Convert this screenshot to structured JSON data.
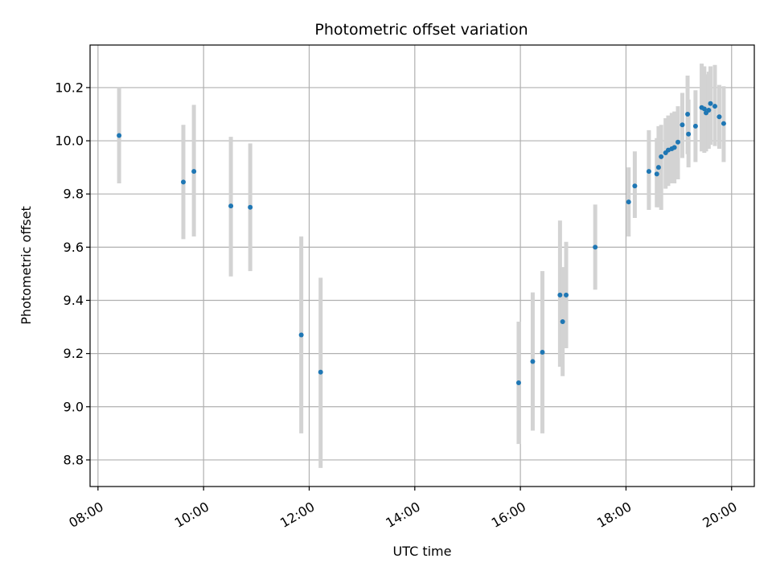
{
  "chart_data": {
    "type": "scatter",
    "title": "Photometric offset variation",
    "xlabel": "UTC time",
    "ylabel": "Photometric offset",
    "x_tick_labels": [
      "08:00",
      "10:00",
      "12:00",
      "14:00",
      "16:00",
      "18:00",
      "20:00"
    ],
    "y_tick_labels": [
      "8.8",
      "9.0",
      "9.2",
      "9.4",
      "9.6",
      "9.8",
      "10.0",
      "10.2"
    ],
    "x_ticks_hours": [
      8,
      10,
      12,
      14,
      16,
      18,
      20
    ],
    "y_ticks": [
      8.8,
      9.0,
      9.2,
      9.4,
      9.6,
      9.8,
      10.0,
      10.2
    ],
    "xlim_hours": [
      7.85,
      20.43
    ],
    "ylim": [
      8.7,
      10.36
    ],
    "grid": true,
    "point_color": "#1f77b4",
    "errorbar_color": "#d3d3d3",
    "points": [
      {
        "t": "08:24",
        "y": 10.02,
        "lo": 9.84,
        "hi": 10.2
      },
      {
        "t": "09:37",
        "y": 9.845,
        "lo": 9.63,
        "hi": 10.06
      },
      {
        "t": "09:49",
        "y": 9.885,
        "lo": 9.64,
        "hi": 10.135
      },
      {
        "t": "10:31",
        "y": 9.755,
        "lo": 9.49,
        "hi": 10.015
      },
      {
        "t": "10:53",
        "y": 9.75,
        "lo": 9.51,
        "hi": 9.99
      },
      {
        "t": "11:51",
        "y": 9.27,
        "lo": 8.9,
        "hi": 9.64
      },
      {
        "t": "12:13",
        "y": 9.13,
        "lo": 8.77,
        "hi": 9.485
      },
      {
        "t": "15:58",
        "y": 9.09,
        "lo": 8.86,
        "hi": 9.32
      },
      {
        "t": "16:14",
        "y": 9.17,
        "lo": 8.91,
        "hi": 9.43
      },
      {
        "t": "16:25",
        "y": 9.205,
        "lo": 8.9,
        "hi": 9.51
      },
      {
        "t": "16:45",
        "y": 9.42,
        "lo": 9.15,
        "hi": 9.7
      },
      {
        "t": "16:48",
        "y": 9.32,
        "lo": 9.115,
        "hi": 9.525
      },
      {
        "t": "16:52",
        "y": 9.42,
        "lo": 9.22,
        "hi": 9.62
      },
      {
        "t": "17:25",
        "y": 9.6,
        "lo": 9.44,
        "hi": 9.76
      },
      {
        "t": "18:03",
        "y": 9.77,
        "lo": 9.64,
        "hi": 9.9
      },
      {
        "t": "18:10",
        "y": 9.83,
        "lo": 9.71,
        "hi": 9.96
      },
      {
        "t": "18:26",
        "y": 9.885,
        "lo": 9.74,
        "hi": 10.04
      },
      {
        "t": "18:35",
        "y": 9.875,
        "lo": 9.75,
        "hi": 10.01
      },
      {
        "t": "18:37",
        "y": 9.9,
        "lo": 9.75,
        "hi": 10.055
      },
      {
        "t": "18:40",
        "y": 9.94,
        "lo": 9.74,
        "hi": 10.06
      },
      {
        "t": "18:45",
        "y": 9.955,
        "lo": 9.82,
        "hi": 10.085
      },
      {
        "t": "18:48",
        "y": 9.965,
        "lo": 9.83,
        "hi": 10.095
      },
      {
        "t": "18:52",
        "y": 9.97,
        "lo": 9.84,
        "hi": 10.105
      },
      {
        "t": "18:55",
        "y": 9.975,
        "lo": 9.84,
        "hi": 10.11
      },
      {
        "t": "18:59",
        "y": 9.995,
        "lo": 9.855,
        "hi": 10.13
      },
      {
        "t": "19:04",
        "y": 10.06,
        "lo": 9.935,
        "hi": 10.18
      },
      {
        "t": "19:10",
        "y": 10.1,
        "lo": 9.95,
        "hi": 10.245
      },
      {
        "t": "19:11",
        "y": 10.025,
        "lo": 9.9,
        "hi": 10.155
      },
      {
        "t": "19:19",
        "y": 10.055,
        "lo": 9.92,
        "hi": 10.19
      },
      {
        "t": "19:26",
        "y": 10.125,
        "lo": 9.96,
        "hi": 10.29
      },
      {
        "t": "19:29",
        "y": 10.12,
        "lo": 9.955,
        "hi": 10.28
      },
      {
        "t": "19:31",
        "y": 10.105,
        "lo": 9.96,
        "hi": 10.25
      },
      {
        "t": "19:34",
        "y": 10.115,
        "lo": 9.97,
        "hi": 10.26
      },
      {
        "t": "19:36",
        "y": 10.14,
        "lo": 9.985,
        "hi": 10.28
      },
      {
        "t": "19:41",
        "y": 10.13,
        "lo": 9.98,
        "hi": 10.285
      },
      {
        "t": "19:46",
        "y": 10.09,
        "lo": 9.97,
        "hi": 10.21
      },
      {
        "t": "19:51",
        "y": 10.065,
        "lo": 9.92,
        "hi": 10.205
      }
    ]
  }
}
